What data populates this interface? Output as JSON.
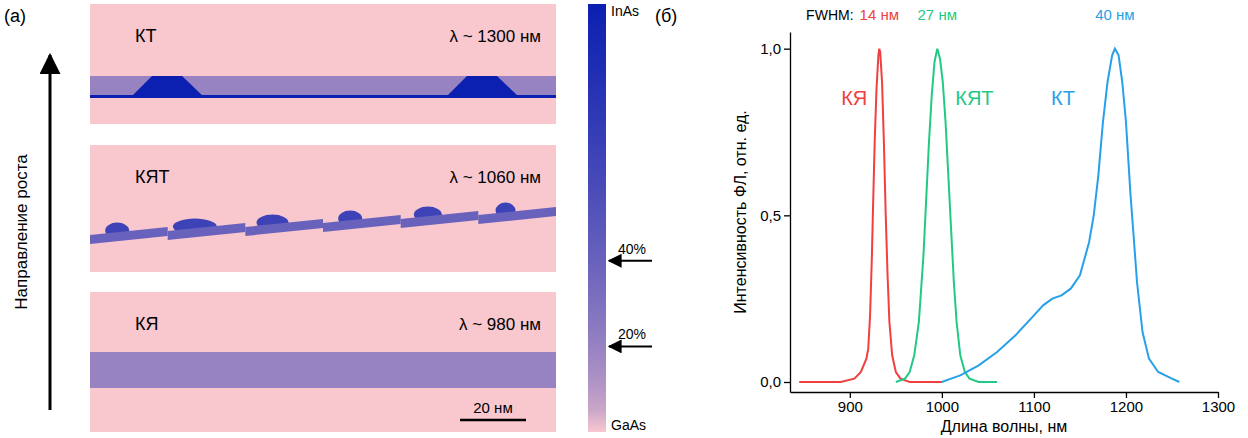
{
  "diagram": {
    "letter": "(a)",
    "growth_label": "Направление роста",
    "structures": [
      {
        "label": "КТ",
        "wavelength": "λ ~ 1300 нм",
        "layers": [
          {
            "in_content": 20
          },
          {
            "in_content": 100
          }
        ]
      },
      {
        "label": "КЯТ",
        "wavelength": "λ ~ 1060 нм",
        "layers": [
          {
            "in_content": 40
          },
          {
            "in_content": 65
          }
        ]
      },
      {
        "label": "КЯ",
        "wavelength": "λ ~ 980 нм",
        "layers": [
          {
            "in_content": 20
          }
        ]
      }
    ],
    "scale_bar": {
      "value": 20,
      "label": "20 нм"
    },
    "colorbar": {
      "range": [
        0,
        100
      ],
      "top_label": "InAs",
      "bottom_label": "GaAs",
      "markers": [
        {
          "value": 40,
          "label": "40%"
        },
        {
          "value": 20,
          "label": "20%"
        }
      ]
    }
  },
  "chart_data": {
    "type": "line",
    "letter": "(б)",
    "annotation": "FWHM:",
    "x_label": "Длина волны, нм",
    "y_label": "Интенсивность ФЛ, отн. ед.",
    "xlim": [
      835,
      1300
    ],
    "xticks": [
      900,
      1000,
      1100,
      1200,
      1300
    ],
    "ylim": [
      -0.03,
      1.05
    ],
    "yticks": [
      {
        "value": 0,
        "label": "0,0"
      },
      {
        "value": 0.5,
        "label": "0,5"
      },
      {
        "value": 1,
        "label": "1,0"
      }
    ],
    "series": [
      {
        "name": "КЯ",
        "color": "#f04040",
        "fwhm": "14 нм",
        "x": [
          845,
          870,
          890,
          905,
          912,
          918,
          920,
          922,
          924,
          925,
          927,
          929,
          931,
          932,
          933,
          935,
          937,
          939,
          941,
          943,
          946,
          950,
          955,
          965,
          980,
          1000
        ],
        "values": [
          0,
          0,
          0,
          0.01,
          0.03,
          0.07,
          0.1,
          0.2,
          0.38,
          0.5,
          0.72,
          0.88,
          0.98,
          1.0,
          0.99,
          0.9,
          0.72,
          0.5,
          0.32,
          0.18,
          0.08,
          0.03,
          0.01,
          0,
          0,
          0
        ]
      },
      {
        "name": "КЯТ",
        "color": "#22c985",
        "fwhm": "27 нм",
        "x": [
          950,
          960,
          965,
          970,
          975,
          980,
          983,
          986,
          989,
          992,
          995,
          998,
          1001,
          1004,
          1007,
          1010,
          1013,
          1016,
          1020,
          1025,
          1030,
          1040,
          1060
        ],
        "values": [
          0,
          0.01,
          0.03,
          0.08,
          0.18,
          0.38,
          0.55,
          0.72,
          0.86,
          0.96,
          1.0,
          0.97,
          0.9,
          0.78,
          0.62,
          0.46,
          0.3,
          0.18,
          0.08,
          0.03,
          0.01,
          0,
          0
        ]
      },
      {
        "name": "КТ",
        "color": "#28a0e8",
        "fwhm": "40 нм",
        "x": [
          1000,
          1010,
          1020,
          1040,
          1060,
          1080,
          1100,
          1110,
          1120,
          1130,
          1140,
          1150,
          1160,
          1165,
          1170,
          1175,
          1180,
          1185,
          1188,
          1192,
          1196,
          1200,
          1205,
          1208,
          1212,
          1218,
          1225,
          1235,
          1250,
          1258
        ],
        "values": [
          0,
          0.01,
          0.02,
          0.05,
          0.09,
          0.14,
          0.2,
          0.23,
          0.25,
          0.26,
          0.28,
          0.32,
          0.42,
          0.5,
          0.62,
          0.78,
          0.9,
          0.98,
          1.0,
          0.98,
          0.9,
          0.78,
          0.56,
          0.45,
          0.3,
          0.15,
          0.07,
          0.03,
          0.01,
          0
        ]
      }
    ]
  }
}
